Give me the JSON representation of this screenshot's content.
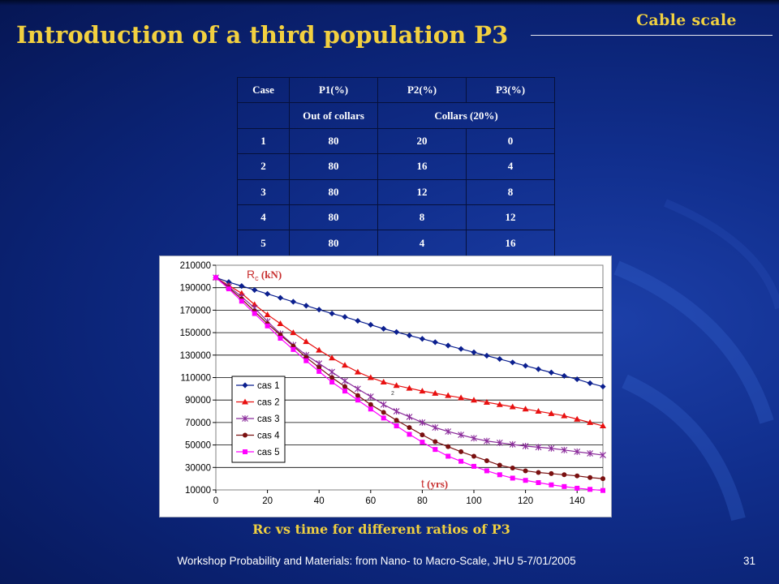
{
  "slide": {
    "title": "Introduction of a third population P3",
    "section_tag": "Cable scale",
    "caption": "Rc vs time for different ratios of P3",
    "footer": "Workshop Probability and Materials: from Nano- to Macro-Scale, JHU 5-7/01/2005",
    "page_number": "31"
  },
  "table": {
    "headers": [
      "Case",
      "P1(%)",
      "P2(%)",
      "P3(%)"
    ],
    "subheader": {
      "blank": "",
      "p1": "Out of collars",
      "p2p3": "Collars (20%)"
    },
    "rows": [
      [
        "1",
        "80",
        "20",
        "0"
      ],
      [
        "2",
        "80",
        "16",
        "4"
      ],
      [
        "3",
        "80",
        "12",
        "8"
      ],
      [
        "4",
        "80",
        "8",
        "12"
      ],
      [
        "5",
        "80",
        "4",
        "16"
      ]
    ]
  },
  "chart_data": {
    "type": "line",
    "ylabel_main": "R",
    "ylabel_sub": "c",
    "ylabel_unit": " (kN)",
    "xlabel_main": "t",
    "xlabel_unit": " (yrs)",
    "stray_mark": "2",
    "xlim": [
      0,
      150
    ],
    "ylim": [
      10000,
      210000
    ],
    "x_ticks": [
      0,
      20,
      40,
      60,
      80,
      100,
      120,
      140
    ],
    "y_ticks": [
      10000,
      30000,
      50000,
      70000,
      90000,
      110000,
      130000,
      150000,
      170000,
      190000,
      210000
    ],
    "grid": true,
    "legend_position": "lower-left",
    "x": [
      0,
      5,
      10,
      15,
      20,
      25,
      30,
      35,
      40,
      45,
      50,
      55,
      60,
      65,
      70,
      75,
      80,
      85,
      90,
      95,
      100,
      105,
      110,
      115,
      120,
      125,
      130,
      135,
      140,
      145,
      150
    ],
    "series": [
      {
        "name": "cas 1",
        "color": "#0b1f8f",
        "marker": "diamond",
        "values": [
          199000,
          195000,
          191500,
          188000,
          184500,
          181000,
          177500,
          174000,
          170500,
          167000,
          164000,
          160500,
          157000,
          153500,
          150500,
          147500,
          144500,
          141500,
          138500,
          135500,
          132500,
          129500,
          126500,
          123500,
          120500,
          117500,
          114500,
          111500,
          108500,
          105000,
          102000
        ]
      },
      {
        "name": "cas 2",
        "color": "#e81010",
        "marker": "triangle",
        "values": [
          199000,
          192000,
          185000,
          175000,
          166000,
          158000,
          150000,
          142000,
          134500,
          127500,
          121000,
          115000,
          110000,
          106000,
          103000,
          100500,
          98000,
          96000,
          94000,
          92000,
          90000,
          88000,
          86000,
          84000,
          82000,
          80000,
          78000,
          76000,
          73000,
          70000,
          67000
        ]
      },
      {
        "name": "cas 3",
        "color": "#8a2a9a",
        "marker": "star",
        "values": [
          199000,
          191000,
          182000,
          172000,
          160000,
          149000,
          139000,
          130000,
          122500,
          115000,
          107000,
          100000,
          93000,
          86000,
          80000,
          75000,
          70000,
          65500,
          62000,
          59000,
          56000,
          53500,
          52000,
          50500,
          49000,
          48000,
          47000,
          45500,
          44000,
          42500,
          41000
        ]
      },
      {
        "name": "cas 4",
        "color": "#7a1010",
        "marker": "circle",
        "values": [
          199000,
          190000,
          180000,
          169000,
          158000,
          148000,
          138000,
          128000,
          119000,
          110000,
          102000,
          94000,
          86000,
          79000,
          72000,
          65500,
          59000,
          53000,
          48500,
          44000,
          40000,
          36000,
          32000,
          29500,
          27000,
          25500,
          24500,
          23500,
          22500,
          21000,
          20000
        ]
      },
      {
        "name": "cas 5",
        "color": "#ff00ff",
        "marker": "square",
        "values": [
          199000,
          189000,
          178000,
          167000,
          156000,
          145000,
          135000,
          125000,
          115500,
          106000,
          98000,
          90000,
          82000,
          74000,
          67000,
          59500,
          52500,
          46000,
          40000,
          35500,
          31000,
          27000,
          23500,
          20500,
          18500,
          16500,
          14500,
          13000,
          11500,
          10500,
          9500
        ]
      }
    ]
  }
}
